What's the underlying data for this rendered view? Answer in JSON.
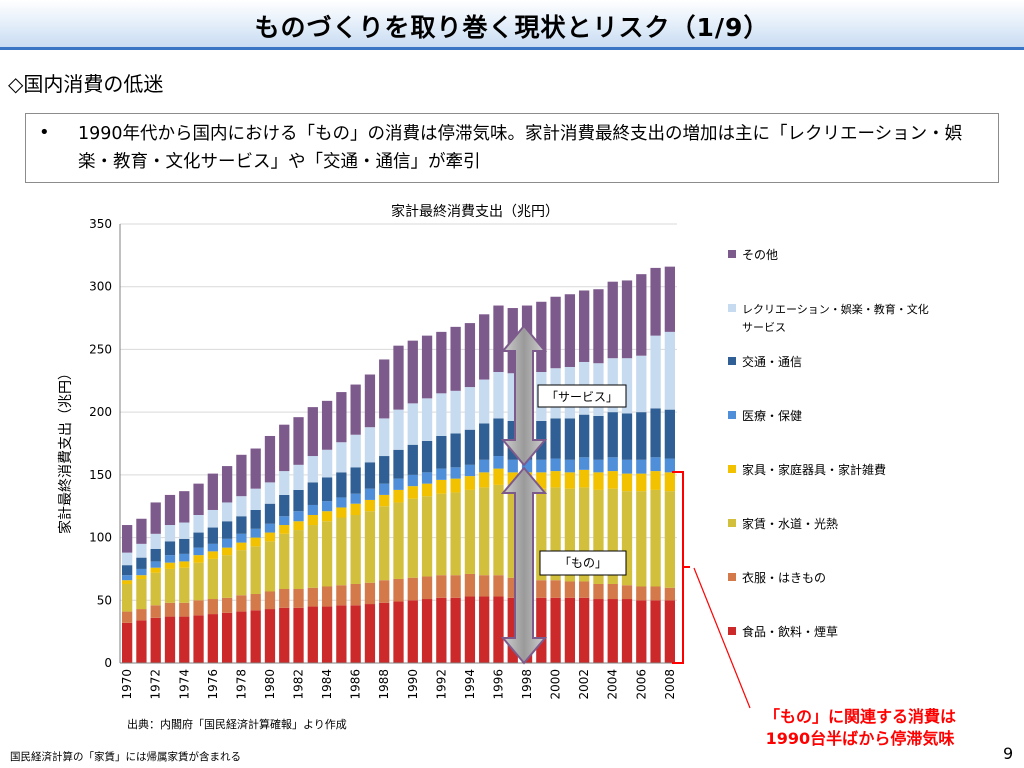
{
  "header": {
    "title": "ものづくりを取り巻く現状とリスク（1/9）"
  },
  "section": {
    "heading": "◇国内消費の低迷"
  },
  "bullet": {
    "marker": "•",
    "text": "1990年代から国内における「もの」の消費は停滞気味。家計消費最終支出の増加は主に「レクリエーション・娯楽・教育・文化サービス」や「交通・通信」が牽引"
  },
  "annotations": {
    "service_label": "「サービス」",
    "goods_label": "「もの」",
    "callout": "「もの」に関連する消費は1990台半ばから停滞気味"
  },
  "source_note": "出典：内閣府「国民経済計算確報」より作成",
  "footnote": "国民経済計算の「家賃」には帰属家賃が含まれる",
  "page_number": "9",
  "colors": {
    "food": "#cc2a2a",
    "clothing": "#d4794a",
    "housing": "#d2bf3c",
    "furniture": "#f2c200",
    "medical": "#4f8fd9",
    "transport": "#2f5f94",
    "recreation": "#c6dbef",
    "other": "#7d5a8c",
    "annotation_red": "#ff0000"
  },
  "chart_data": {
    "type": "bar",
    "stacked": true,
    "title": "家計最終消費支出（兆円）",
    "ylabel": "家計最終消費支出（兆円）",
    "xlabel": "",
    "ylim": [
      0,
      350
    ],
    "yticks": [
      0,
      50,
      100,
      150,
      200,
      250,
      300,
      350
    ],
    "gridlines": true,
    "legend_position": "right",
    "categories": [
      "1970",
      "1971",
      "1972",
      "1973",
      "1974",
      "1975",
      "1976",
      "1977",
      "1978",
      "1979",
      "1980",
      "1981",
      "1982",
      "1983",
      "1984",
      "1985",
      "1986",
      "1987",
      "1988",
      "1989",
      "1990",
      "1991",
      "1992",
      "1993",
      "1994",
      "1995",
      "1996",
      "1997",
      "1998",
      "1999",
      "2000",
      "2001",
      "2002",
      "2003",
      "2004",
      "2005",
      "2006",
      "2007",
      "2008"
    ],
    "x_tick_labels": [
      "1970",
      "1972",
      "1974",
      "1976",
      "1978",
      "1980",
      "1982",
      "1984",
      "1986",
      "1988",
      "1990",
      "1992",
      "1994",
      "1996",
      "1998",
      "2000",
      "2002",
      "2004",
      "2006",
      "2008"
    ],
    "series": [
      {
        "name": "食品・飲料・煙草",
        "key": "food",
        "values": [
          32,
          34,
          36,
          37,
          37,
          38,
          39,
          40,
          41,
          42,
          43,
          44,
          44,
          45,
          45,
          46,
          46,
          47,
          48,
          49,
          50,
          51,
          52,
          52,
          53,
          53,
          53,
          52,
          52,
          52,
          52,
          52,
          52,
          51,
          51,
          51,
          50,
          50,
          50
        ]
      },
      {
        "name": "衣服・はきもの",
        "key": "clothing",
        "values": [
          9,
          9,
          10,
          11,
          11,
          12,
          12,
          12,
          13,
          13,
          14,
          15,
          15,
          15,
          16,
          16,
          17,
          17,
          18,
          18,
          18,
          18,
          18,
          18,
          18,
          17,
          17,
          16,
          15,
          14,
          14,
          13,
          13,
          12,
          12,
          11,
          11,
          11,
          10
        ]
      },
      {
        "name": "家賃・水道・光熱",
        "key": "housing",
        "values": [
          22,
          24,
          26,
          27,
          28,
          30,
          32,
          34,
          36,
          38,
          40,
          44,
          47,
          50,
          52,
          54,
          55,
          57,
          59,
          61,
          63,
          64,
          65,
          66,
          67,
          70,
          72,
          71,
          72,
          73,
          74,
          74,
          75,
          75,
          76,
          75,
          76,
          77,
          77
        ]
      },
      {
        "name": "家具・家庭器具・家計雑費",
        "key": "furniture",
        "values": [
          3,
          3,
          4,
          5,
          5,
          6,
          6,
          6,
          6,
          7,
          7,
          7,
          7,
          8,
          8,
          8,
          9,
          9,
          9,
          10,
          10,
          10,
          11,
          11,
          11,
          12,
          13,
          13,
          13,
          13,
          13,
          13,
          14,
          14,
          14,
          14,
          14,
          15,
          15
        ]
      },
      {
        "name": "医療・保健",
        "key": "medical",
        "values": [
          4,
          5,
          5,
          6,
          6,
          6,
          6,
          7,
          7,
          7,
          7,
          7,
          8,
          8,
          8,
          8,
          8,
          9,
          9,
          9,
          9,
          9,
          9,
          9,
          9,
          10,
          10,
          10,
          10,
          10,
          10,
          10,
          10,
          10,
          11,
          11,
          11,
          11,
          11
        ]
      },
      {
        "name": "交通・通信",
        "key": "transport",
        "values": [
          8,
          9,
          10,
          11,
          12,
          12,
          13,
          14,
          14,
          15,
          16,
          17,
          17,
          18,
          19,
          20,
          21,
          21,
          22,
          23,
          24,
          25,
          26,
          27,
          28,
          29,
          30,
          31,
          31,
          31,
          32,
          33,
          34,
          35,
          36,
          37,
          38,
          39,
          39
        ]
      },
      {
        "name": "レクリエーション・娯楽・教育・文化サービス",
        "key": "recreation",
        "values": [
          10,
          11,
          12,
          13,
          13,
          14,
          14,
          15,
          16,
          17,
          17,
          19,
          20,
          21,
          22,
          24,
          26,
          28,
          30,
          32,
          33,
          34,
          34,
          34,
          34,
          35,
          37,
          38,
          38,
          39,
          40,
          41,
          42,
          42,
          43,
          44,
          45,
          58,
          62
        ]
      },
      {
        "name": "その他",
        "key": "other",
        "values": [
          22,
          20,
          25,
          24,
          25,
          25,
          29,
          29,
          33,
          32,
          37,
          37,
          38,
          39,
          39,
          40,
          40,
          42,
          47,
          51,
          50,
          50,
          49,
          51,
          51,
          52,
          53,
          52,
          54,
          56,
          57,
          58,
          57,
          59,
          61,
          62,
          65,
          54,
          52
        ]
      }
    ],
    "legend_order": [
      "other",
      "recreation",
      "transport",
      "medical",
      "furniture",
      "housing",
      "clothing",
      "food"
    ]
  }
}
